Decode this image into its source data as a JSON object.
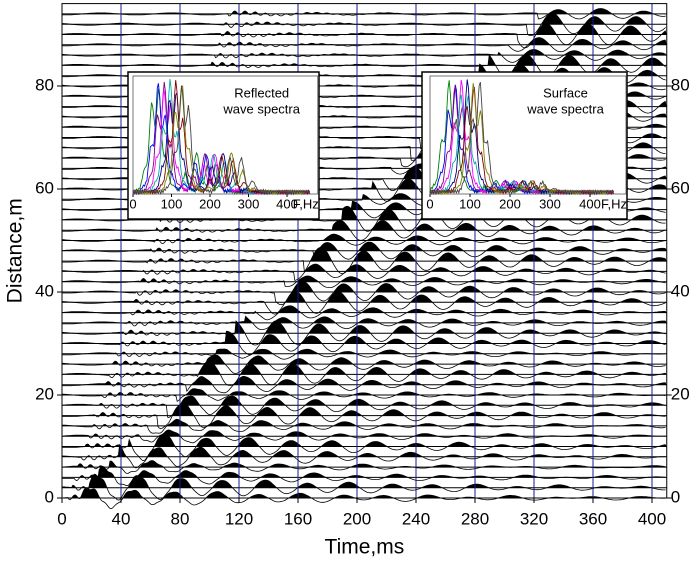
{
  "chart_data": [
    {
      "type": "seismogram",
      "xlabel": "Time,ms",
      "ylabel": "Distance,m",
      "xlim": [
        0,
        410
      ],
      "ylim": [
        0,
        96
      ],
      "xticks": [
        0,
        40,
        80,
        120,
        160,
        200,
        240,
        280,
        320,
        360,
        400
      ],
      "yticks": [
        0,
        20,
        40,
        60,
        80
      ],
      "grid": true,
      "grid_color": "#1a1a8c",
      "trace_offsets": [
        0,
        2,
        4,
        6,
        8,
        10,
        12,
        14,
        16,
        18,
        20,
        22,
        24,
        26,
        28,
        30,
        32,
        34,
        36,
        38,
        40,
        42,
        44,
        46,
        48,
        50,
        52,
        54,
        56,
        58,
        60,
        62,
        64,
        66,
        68,
        70,
        72,
        74,
        76,
        78,
        80,
        82,
        84,
        86,
        88,
        90,
        92,
        94
      ]
    },
    {
      "type": "spectrum-inset",
      "title": [
        "Reflected",
        "wave spectra"
      ],
      "xlabel": "F,Hz",
      "xlim": [
        0,
        480
      ],
      "xticks": [
        0,
        100,
        200,
        300,
        400
      ]
    },
    {
      "type": "spectrum-inset",
      "title": [
        "Surface",
        "wave spectra"
      ],
      "xlabel": "F,Hz",
      "xlim": [
        0,
        490
      ],
      "xticks": [
        0,
        100,
        200,
        300,
        400
      ]
    }
  ]
}
